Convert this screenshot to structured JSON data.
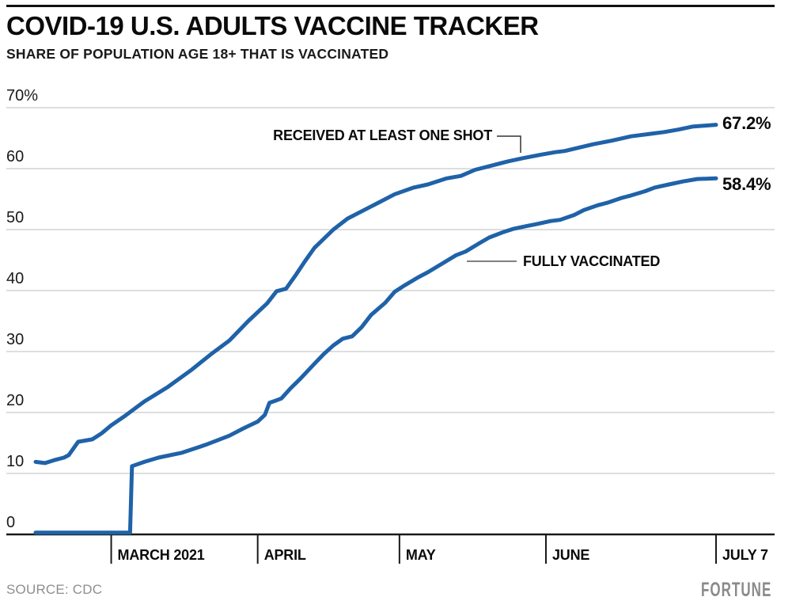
{
  "header": {
    "title": "COVID-19 U.S. ADULTS VACCINE TRACKER",
    "subtitle": "SHARE OF POPULATION AGE 18+ THAT IS VACCINATED"
  },
  "footer": {
    "source": "SOURCE: CDC",
    "brand": "FORTUNE"
  },
  "colors": {
    "line": "#1f62a8",
    "grid": "#cbcbcb",
    "axis": "#1a1a1a",
    "connector_dark": "#333333",
    "connector_gray": "#808080",
    "text": "#0a0a0a",
    "muted": "#8e8e93"
  },
  "chart_data": {
    "type": "line",
    "title": "COVID-19 U.S. ADULTS VACCINE TRACKER",
    "subtitle": "SHARE OF POPULATION AGE 18+ THAT IS VACCINATED",
    "grid": "horizontal",
    "legend_position": "inline-annotations",
    "x_axis": {
      "unit": "days since Feb 13 2021",
      "range_days": [
        0,
        144
      ],
      "tick_days": [
        16,
        47,
        77,
        108,
        144
      ],
      "tick_labels": [
        "MARCH 2021",
        "APRIL",
        "MAY",
        "JUNE",
        "JULY 7"
      ]
    },
    "y_axis": {
      "ylim": [
        0,
        70
      ],
      "ticks": [
        0,
        10,
        20,
        30,
        40,
        50,
        60,
        70
      ],
      "tick_labels": [
        "0",
        "10",
        "20",
        "30",
        "40",
        "50",
        "60",
        "70%"
      ]
    },
    "series": [
      {
        "name": "RECEIVED AT LEAST ONE SHOT",
        "end_label": "67.2%",
        "end_value": 67.2,
        "points": [
          [
            0,
            11.9
          ],
          [
            2,
            11.7
          ],
          [
            4,
            12.2
          ],
          [
            6,
            12.6
          ],
          [
            7,
            13.0
          ],
          [
            9,
            15.2
          ],
          [
            12,
            15.6
          ],
          [
            14,
            16.6
          ],
          [
            16,
            17.9
          ],
          [
            19,
            19.5
          ],
          [
            23,
            21.8
          ],
          [
            28,
            24.2
          ],
          [
            33,
            27.0
          ],
          [
            37,
            29.5
          ],
          [
            41,
            31.8
          ],
          [
            45,
            35.0
          ],
          [
            49,
            37.9
          ],
          [
            51,
            39.9
          ],
          [
            53,
            40.3
          ],
          [
            55,
            42.5
          ],
          [
            57,
            44.8
          ],
          [
            59,
            47.0
          ],
          [
            63,
            50.0
          ],
          [
            66,
            51.8
          ],
          [
            70,
            53.4
          ],
          [
            73,
            54.6
          ],
          [
            76,
            55.8
          ],
          [
            80,
            56.9
          ],
          [
            83,
            57.4
          ],
          [
            87,
            58.4
          ],
          [
            90,
            58.8
          ],
          [
            93,
            59.8
          ],
          [
            96,
            60.4
          ],
          [
            100,
            61.2
          ],
          [
            103,
            61.7
          ],
          [
            107,
            62.3
          ],
          [
            110,
            62.7
          ],
          [
            112,
            62.9
          ],
          [
            118,
            64.0
          ],
          [
            122,
            64.6
          ],
          [
            126,
            65.3
          ],
          [
            130,
            65.7
          ],
          [
            133,
            66.0
          ],
          [
            136,
            66.4
          ],
          [
            139,
            66.9
          ],
          [
            144,
            67.2
          ]
        ]
      },
      {
        "name": "FULLY VACCINATED",
        "end_label": "58.4%",
        "end_value": 58.4,
        "points": [
          [
            0,
            0.3
          ],
          [
            20,
            0.3
          ],
          [
            20.4,
            11.2
          ],
          [
            23,
            11.9
          ],
          [
            26,
            12.6
          ],
          [
            31,
            13.4
          ],
          [
            36,
            14.7
          ],
          [
            41,
            16.2
          ],
          [
            44,
            17.4
          ],
          [
            47,
            18.5
          ],
          [
            48.5,
            19.6
          ],
          [
            49.5,
            21.6
          ],
          [
            51,
            22.0
          ],
          [
            52,
            22.3
          ],
          [
            54,
            24.0
          ],
          [
            56,
            25.5
          ],
          [
            59,
            28.0
          ],
          [
            61,
            29.6
          ],
          [
            63,
            31.0
          ],
          [
            65,
            32.1
          ],
          [
            67,
            32.5
          ],
          [
            69,
            34.0
          ],
          [
            71,
            36.0
          ],
          [
            74,
            38.0
          ],
          [
            76,
            39.8
          ],
          [
            78,
            40.8
          ],
          [
            81,
            42.2
          ],
          [
            83,
            43.0
          ],
          [
            86,
            44.4
          ],
          [
            89,
            45.8
          ],
          [
            91,
            46.4
          ],
          [
            94,
            47.8
          ],
          [
            96,
            48.7
          ],
          [
            99,
            49.6
          ],
          [
            101,
            50.1
          ],
          [
            104,
            50.6
          ],
          [
            106,
            50.9
          ],
          [
            109,
            51.4
          ],
          [
            111,
            51.6
          ],
          [
            114,
            52.4
          ],
          [
            116,
            53.2
          ],
          [
            119,
            54.0
          ],
          [
            121,
            54.4
          ],
          [
            124,
            55.2
          ],
          [
            126,
            55.6
          ],
          [
            129,
            56.3
          ],
          [
            131,
            56.9
          ],
          [
            134,
            57.4
          ],
          [
            137,
            57.9
          ],
          [
            140,
            58.3
          ],
          [
            144,
            58.4
          ]
        ]
      }
    ]
  }
}
